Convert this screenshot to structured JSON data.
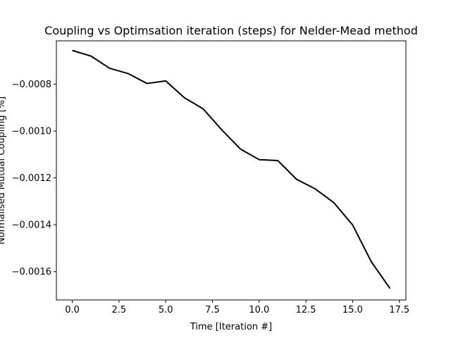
{
  "chart_data": {
    "type": "line",
    "title": "Coupling vs Optimsation iteration (steps) for Nelder-Mead method",
    "xlabel": "Time [Iteration #]",
    "ylabel": "Normalised Mutual Coupling [%]",
    "xlim": [
      -0.85,
      17.85
    ],
    "ylim": [
      -0.001721,
      -0.000615
    ],
    "grid": false,
    "legend": "none",
    "x_ticks": [
      0.0,
      2.5,
      5.0,
      7.5,
      10.0,
      12.5,
      15.0,
      17.5
    ],
    "x_tick_labels": [
      "0.0",
      "2.5",
      "5.0",
      "7.5",
      "10.0",
      "12.5",
      "15.0",
      "17.5"
    ],
    "y_ticks": [
      -0.0008,
      -0.001,
      -0.0012,
      -0.0014,
      -0.0016
    ],
    "y_tick_labels": [
      "−0.0008",
      "−0.0010",
      "−0.0012",
      "−0.0014",
      "−0.0016"
    ],
    "series": [
      {
        "color": "#000000",
        "x": [
          0,
          1,
          2,
          3,
          4,
          5,
          6,
          7,
          8,
          9,
          10,
          11,
          12,
          13,
          14,
          15,
          16,
          17
        ],
        "y": [
          -0.000656,
          -0.00068,
          -0.000732,
          -0.000755,
          -0.000797,
          -0.000786,
          -0.000858,
          -0.000905,
          -0.000995,
          -0.001077,
          -0.001122,
          -0.001126,
          -0.001206,
          -0.001247,
          -0.001306,
          -0.001401,
          -0.001558,
          -0.001672
        ]
      }
    ]
  }
}
